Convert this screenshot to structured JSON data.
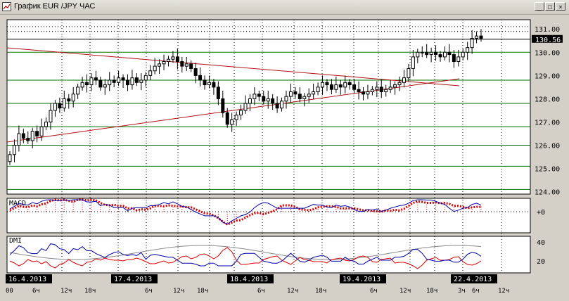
{
  "window": {
    "title": "График EUR /JPY  ЧАС",
    "buttons": {
      "minimize": "_",
      "maximize": "□",
      "close": "×"
    }
  },
  "main_panel": {
    "price_labels": [
      "131.00",
      "130.00",
      "129.00",
      "128.00",
      "127.00",
      "126.00",
      "125.00",
      "124.00"
    ],
    "current_price": "130.56",
    "horizontal_levels": [
      124.1,
      125.1,
      126.0,
      126.8,
      127.8,
      128.8,
      130.0,
      130.9,
      131.1
    ]
  },
  "macd_panel": {
    "label": "MACD",
    "zero_label": "+0"
  },
  "dmi_panel": {
    "label": "DMI",
    "scale_labels": [
      "40",
      "20"
    ]
  },
  "time_axis": {
    "date_labels": [
      "16.4.2013",
      "17.4.2013",
      "18.4.2013",
      "19.4.2013",
      "22.4.2013"
    ],
    "hour_labels": [
      "00",
      "6ч",
      "12ч",
      "18ч",
      "6ч",
      "12ч",
      "18ч",
      "6ч",
      "12ч",
      "18ч",
      "6ч",
      "12ч",
      "18ч",
      "3ч",
      "6ч",
      "12ч"
    ]
  },
  "colors": {
    "background": "#ffffff",
    "frame": "#d4d0c8",
    "candle": "#000000",
    "trendline": "#b01010",
    "level": "#007000",
    "macd_line": "#0000aa",
    "macd_signal": "#dd0000",
    "dmi_plus": "#0000aa",
    "dmi_minus": "#dd0000",
    "adx": "#888888"
  },
  "chart_data": {
    "type": "candlestick",
    "title": "График EUR /JPY  ЧАС",
    "ylim": [
      123.9,
      131.4
    ],
    "closes": [
      125.6,
      126.0,
      126.5,
      126.3,
      126.2,
      126.6,
      126.4,
      126.8,
      127.0,
      127.5,
      127.8,
      127.6,
      128.0,
      127.9,
      128.2,
      128.5,
      128.7,
      128.6,
      128.9,
      128.8,
      128.5,
      128.6,
      128.8,
      128.7,
      128.9,
      128.8,
      128.6,
      128.9,
      128.7,
      128.8,
      129.0,
      129.2,
      129.4,
      129.5,
      129.6,
      129.7,
      129.8,
      129.6,
      129.4,
      129.5,
      129.3,
      129.0,
      128.8,
      128.6,
      128.7,
      128.5,
      128.0,
      127.4,
      126.9,
      127.1,
      127.3,
      127.5,
      127.8,
      128.0,
      128.2,
      128.1,
      127.9,
      128.0,
      127.8,
      127.6,
      127.9,
      128.1,
      128.3,
      128.2,
      128.0,
      128.1,
      128.2,
      128.3,
      128.5,
      128.7,
      128.6,
      128.4,
      128.6,
      128.5,
      128.7,
      128.6,
      128.4,
      128.3,
      128.2,
      128.3,
      128.4,
      128.5,
      128.3,
      128.4,
      128.5,
      128.6,
      128.7,
      128.9,
      129.3,
      129.8,
      130.0,
      130.0,
      129.9,
      130.0,
      129.9,
      129.8,
      130.0,
      129.9,
      129.6,
      129.8,
      130.0,
      130.2,
      130.6,
      130.7,
      130.6
    ]
  }
}
